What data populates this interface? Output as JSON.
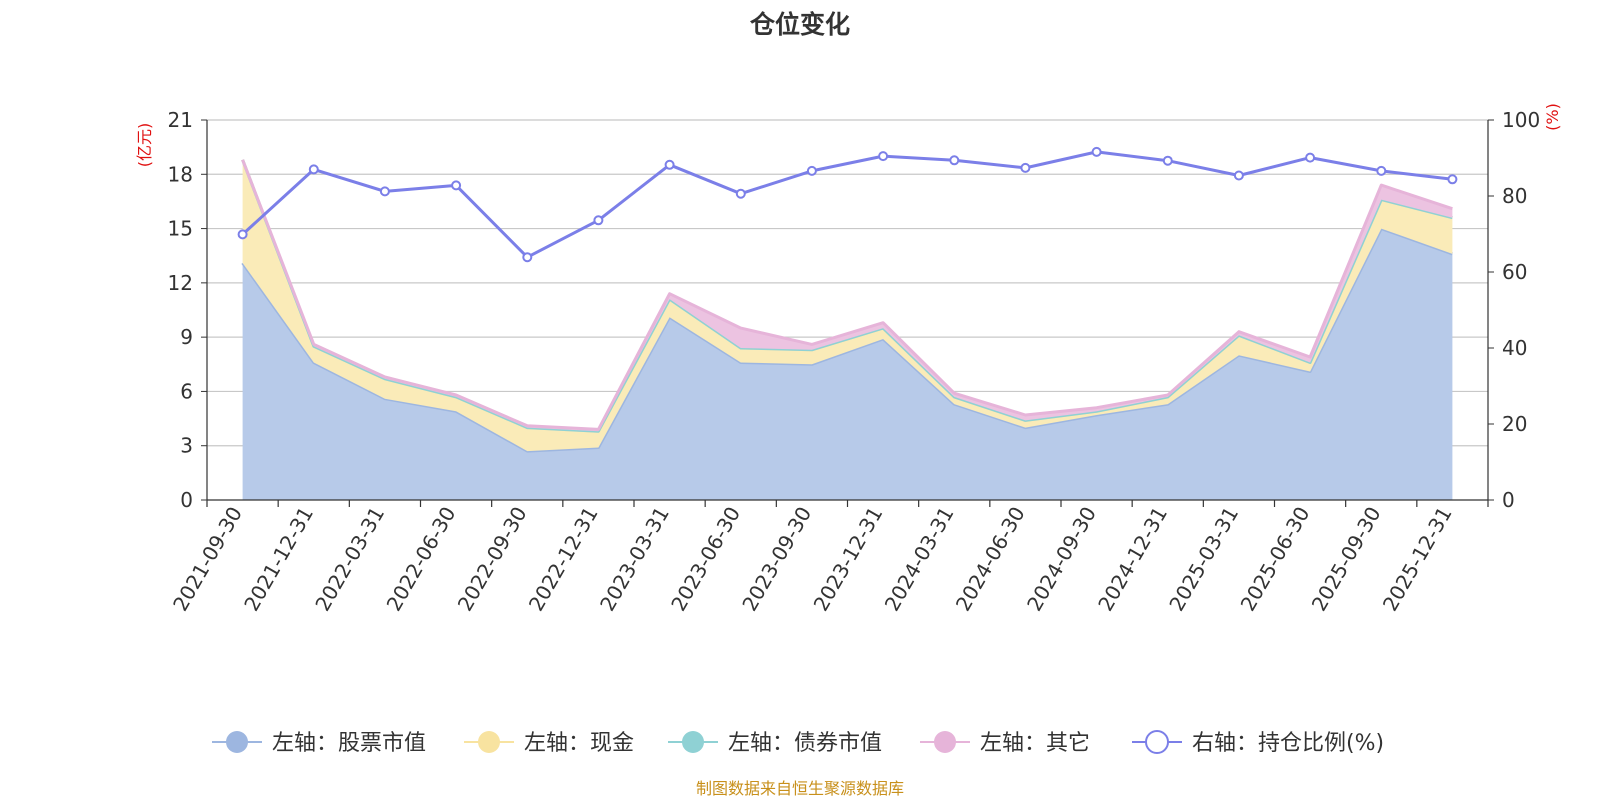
{
  "chart_data": {
    "type": "area",
    "title": "仓位变化",
    "left_axis_unit": "(亿元)",
    "right_axis_unit": "(%)",
    "left_ylim": [
      0,
      21
    ],
    "left_ticks": [
      "0",
      "3",
      "6",
      "9",
      "12",
      "15",
      "18",
      "21"
    ],
    "right_ylim": [
      0,
      100
    ],
    "right_ticks": [
      "0",
      "20",
      "40",
      "60",
      "80",
      "100"
    ],
    "categories": [
      "2021-09-30",
      "2021-12-31",
      "2022-03-31",
      "2022-06-30",
      "2022-09-30",
      "2022-12-31",
      "2023-03-31",
      "2023-06-30",
      "2023-09-30",
      "2023-12-31",
      "2024-03-31",
      "2024-06-30",
      "2024-09-30",
      "2024-12-31",
      "2025-03-31",
      "2025-06-30",
      "2025-09-30",
      "2025-12-31"
    ],
    "grid": true,
    "legend_position": "bottom",
    "series": [
      {
        "name": "左轴：股票市值",
        "axis": "left",
        "stacked": true,
        "color": "#9db6e0",
        "fill": "#b7cae9",
        "values": [
          13.1,
          7.6,
          5.6,
          4.9,
          2.7,
          2.9,
          10.1,
          7.6,
          7.5,
          8.9,
          5.3,
          4.0,
          4.7,
          5.3,
          8.0,
          7.1,
          15.0,
          13.6
        ]
      },
      {
        "name": "左轴：现金",
        "axis": "left",
        "stacked": true,
        "color": "#f8e3a0",
        "fill": "#faebb8",
        "values": [
          5.7,
          0.9,
          1.1,
          0.8,
          1.3,
          0.9,
          1.0,
          0.8,
          0.8,
          0.6,
          0.4,
          0.4,
          0.2,
          0.4,
          1.1,
          0.5,
          1.6,
          2.0
        ]
      },
      {
        "name": "左轴：债券市值",
        "axis": "left",
        "stacked": true,
        "color": "#8fd1d4",
        "fill": "#a8dde0",
        "values": [
          0,
          0,
          0,
          0,
          0,
          0,
          0,
          0,
          0,
          0,
          0,
          0,
          0,
          0,
          0,
          0,
          0,
          0
        ]
      },
      {
        "name": "左轴：其它",
        "axis": "left",
        "stacked": true,
        "color": "#e6b4d9",
        "fill": "#ecc3e1",
        "values": [
          0,
          0.1,
          0.1,
          0.1,
          0.1,
          0.1,
          0.3,
          1.1,
          0.3,
          0.3,
          0.2,
          0.3,
          0.2,
          0.1,
          0.2,
          0.3,
          0.8,
          0.5
        ]
      },
      {
        "name": "右轴：持仓比例(%)",
        "axis": "right",
        "type": "line",
        "color": "#7b7fe8",
        "values": [
          69.9,
          87.0,
          81.2,
          82.8,
          63.9,
          73.6,
          88.2,
          80.6,
          86.6,
          90.5,
          89.4,
          87.4,
          91.6,
          89.3,
          85.4,
          90.1,
          86.6,
          84.4
        ]
      }
    ],
    "footer_note": "制图数据来自恒生聚源数据库"
  },
  "colors": {
    "axis_unit": "#e01010",
    "footer": "#c8901b",
    "grid": "#c8c8c8",
    "axis": "#333333"
  }
}
